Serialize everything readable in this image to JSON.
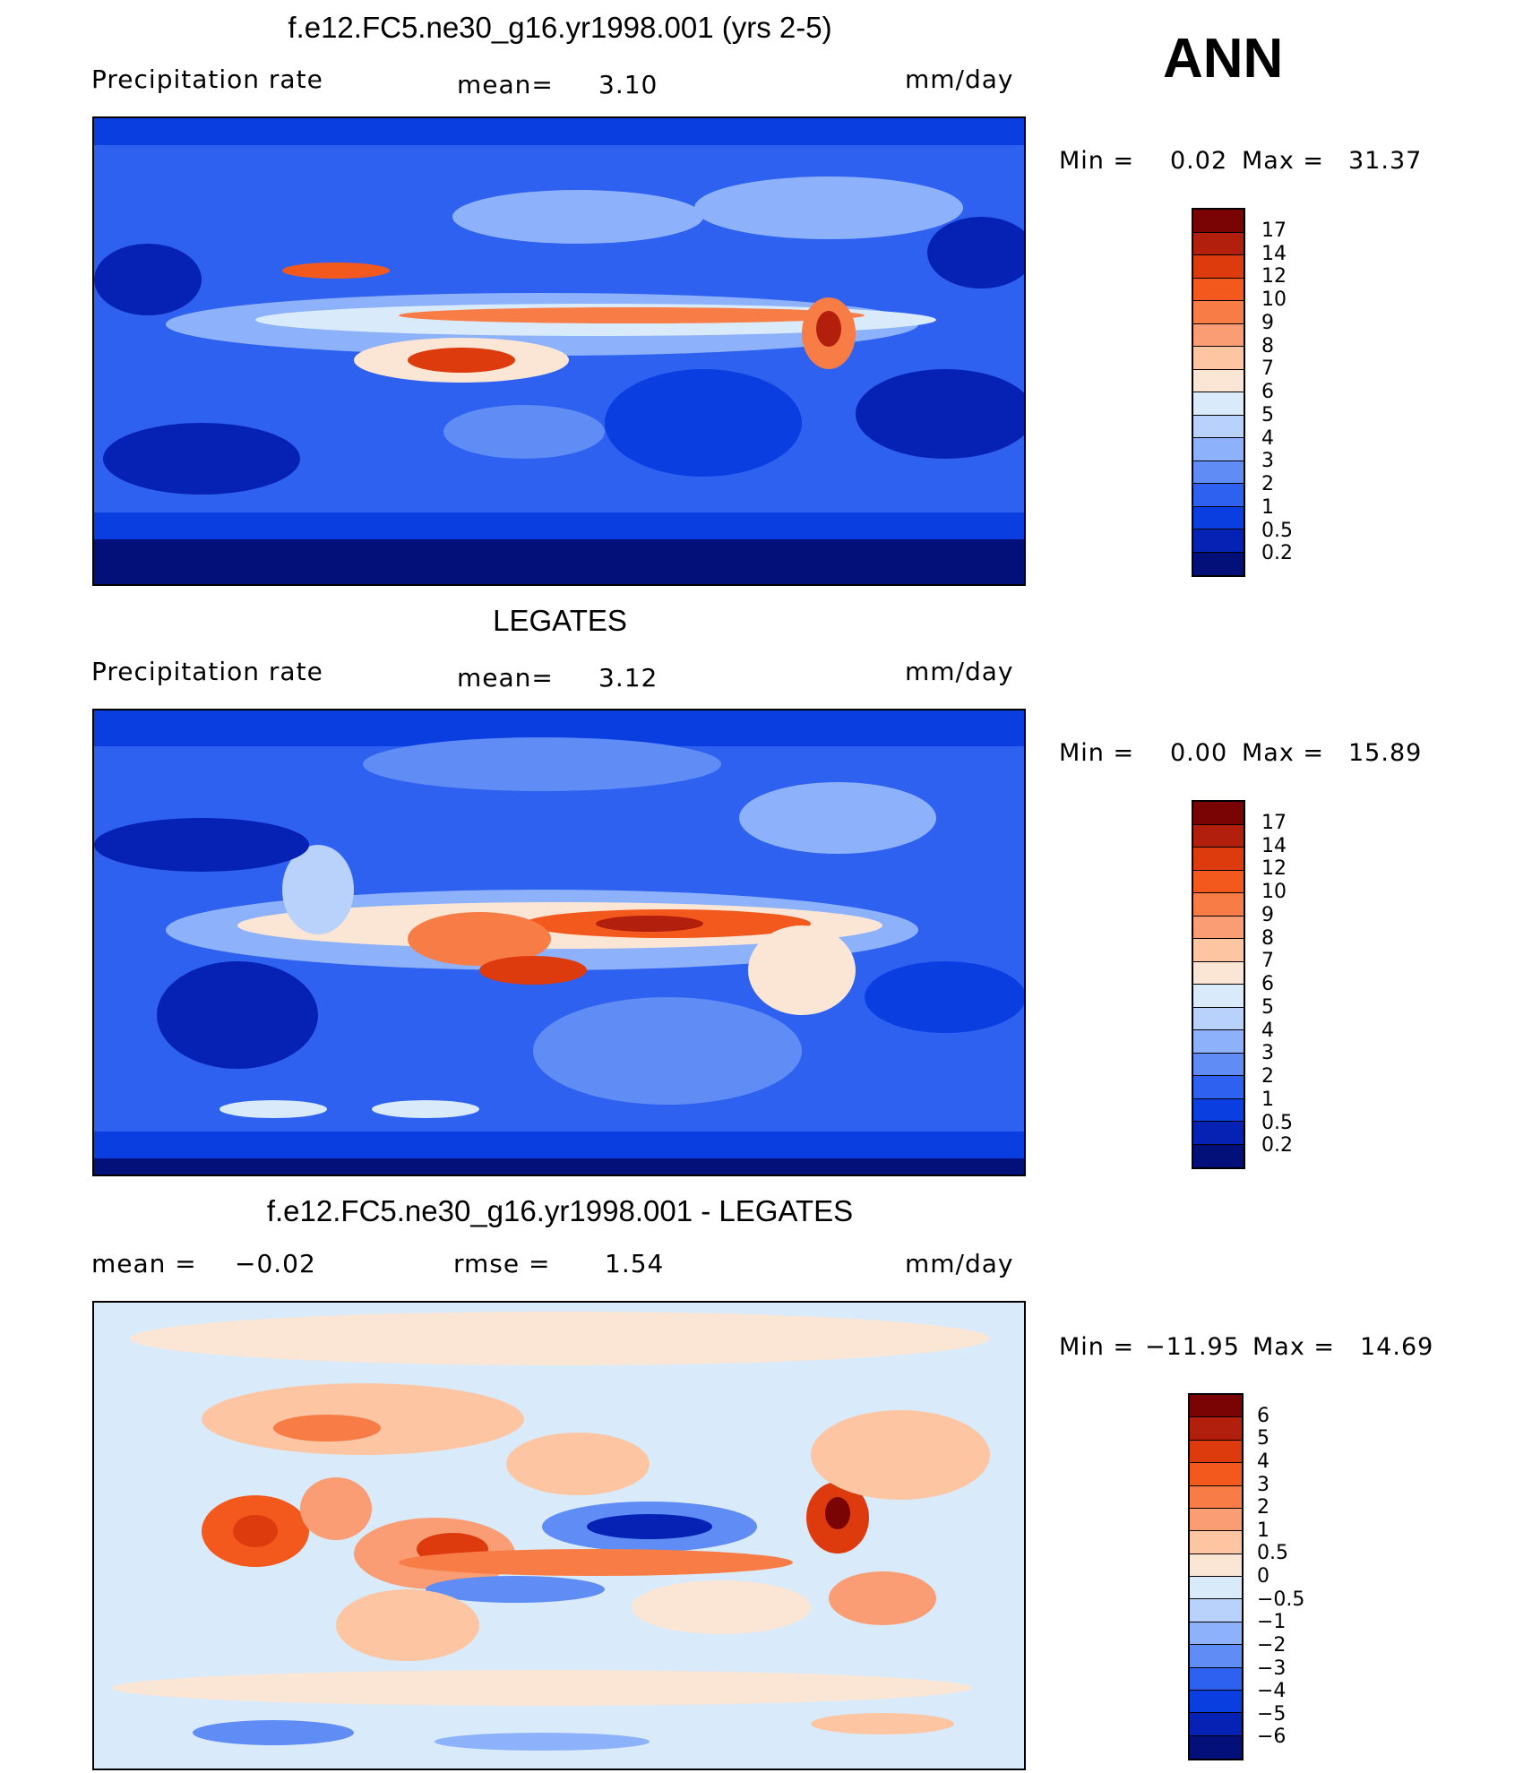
{
  "season": "ANN",
  "panels": [
    {
      "title": "f.e12.FC5.ne30_g16.yr1998.001 (yrs 2-5)",
      "left_label": "Precipitation  rate",
      "mean_label": "mean=",
      "mean_value": "3.10",
      "units": "mm/day",
      "min_label": "Min  =",
      "min_value": "0.02",
      "max_label": "Max  =",
      "max_value": "31.37"
    },
    {
      "title": "LEGATES",
      "left_label": "Precipitation  rate",
      "mean_label": "mean=",
      "mean_value": "3.12",
      "units": "mm/day",
      "min_label": "Min  =",
      "min_value": "0.00",
      "max_label": "Max  =",
      "max_value": "15.89"
    },
    {
      "title": "f.e12.FC5.ne30_g16.yr1998.001 - LEGATES",
      "left_label": "mean  =",
      "left_value": "−0.02",
      "mean_label": "rmse  =",
      "mean_value": "1.54",
      "units": "mm/day",
      "min_label": "Min  =",
      "min_value": "−11.95",
      "max_label": "Max  =",
      "max_value": "14.69"
    }
  ],
  "colorbars": {
    "precip": {
      "labels": [
        "17",
        "14",
        "12",
        "10",
        "9",
        "8",
        "7",
        "6",
        "5",
        "4",
        "3",
        "2",
        "1",
        "0.5",
        "0.2"
      ],
      "colors": [
        "#7a0403",
        "#b21f0c",
        "#dd3a0e",
        "#f3581d",
        "#f77c45",
        "#fa9d74",
        "#fdc5a2",
        "#fbe6d6",
        "#d9ebfa",
        "#b8d2fb",
        "#8db2fb",
        "#5f8cf5",
        "#2f61f0",
        "#0b3ee0",
        "#0622b5",
        "#03107a"
      ]
    },
    "diff": {
      "labels": [
        "6",
        "5",
        "4",
        "3",
        "2",
        "1",
        "0.5",
        "0",
        "−0.5",
        "−1",
        "−2",
        "−3",
        "−4",
        "−5",
        "−6"
      ],
      "colors": [
        "#7a0403",
        "#b21f0c",
        "#dd3a0e",
        "#f3581d",
        "#f77c45",
        "#fa9d74",
        "#fdc5a2",
        "#fbe6d6",
        "#d9ebfa",
        "#b8d2fb",
        "#8db2fb",
        "#5f8cf5",
        "#2f61f0",
        "#0b3ee0",
        "#0622b5",
        "#03107a"
      ]
    }
  },
  "chart_data": {
    "type": "heatmap",
    "fields": [
      {
        "name": "f.e12.FC5.ne30_g16.yr1998.001 (yrs 2-5)",
        "mean": 3.1,
        "min": 0.02,
        "max": 31.37,
        "units": "mm/day"
      },
      {
        "name": "LEGATES",
        "mean": 3.12,
        "min": 0.0,
        "max": 15.89,
        "units": "mm/day"
      },
      {
        "name": "f.e12.FC5.ne30_g16.yr1998.001 - LEGATES",
        "mean": -0.02,
        "rmse": 1.54,
        "min": -11.95,
        "max": 14.69,
        "units": "mm/day"
      }
    ],
    "contour_levels_precip": [
      0.2,
      0.5,
      1,
      2,
      3,
      4,
      5,
      6,
      7,
      8,
      9,
      10,
      12,
      14,
      17
    ],
    "contour_levels_diff": [
      -6,
      -5,
      -4,
      -3,
      -2,
      -1,
      -0.5,
      0,
      0.5,
      1,
      2,
      3,
      4,
      5,
      6
    ]
  }
}
